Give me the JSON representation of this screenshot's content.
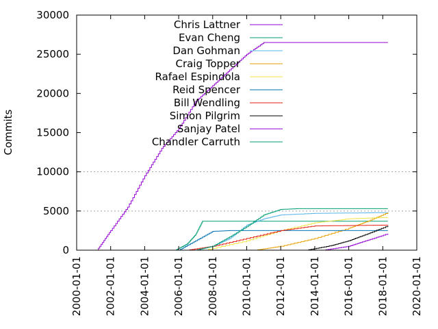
{
  "chart_data": {
    "type": "line",
    "title": "",
    "xlabel": "",
    "ylabel": "Commits",
    "xlim": [
      2000.0,
      2020.0
    ],
    "ylim": [
      0,
      30000
    ],
    "x_ticks": [
      "2000-01-01",
      "2002-01-01",
      "2004-01-01",
      "2006-01-01",
      "2008-01-01",
      "2010-01-01",
      "2012-01-01",
      "2014-01-01",
      "2016-01-01",
      "2018-01-01",
      "2020-01-01"
    ],
    "x_tick_values": [
      2000,
      2002,
      2004,
      2006,
      2008,
      2010,
      2012,
      2014,
      2016,
      2018,
      2020
    ],
    "y_ticks": [
      0,
      5000,
      10000,
      15000,
      20000,
      25000,
      30000
    ],
    "y_tick_labels": [
      "0",
      "5000",
      "10000",
      "15000",
      "20000",
      "25000",
      "30000"
    ],
    "grid_y": [
      5000,
      10000
    ],
    "legend_position": "top-left",
    "series": [
      {
        "name": "Chris Lattner",
        "color": "#9400d3",
        "points": [
          [
            2001.2,
            0
          ],
          [
            2002,
            2500
          ],
          [
            2003,
            5500
          ],
          [
            2004,
            9500
          ],
          [
            2005,
            13000
          ],
          [
            2006,
            15500
          ],
          [
            2007,
            19000
          ],
          [
            2008,
            21000
          ],
          [
            2009,
            23000
          ],
          [
            2010,
            25000
          ],
          [
            2011,
            26500
          ],
          [
            2012,
            26500
          ],
          [
            2018.3,
            26500
          ]
        ]
      },
      {
        "name": "Evan Cheng",
        "color": "#009e73",
        "points": [
          [
            2005.8,
            0
          ],
          [
            2006.5,
            800
          ],
          [
            2007,
            2000
          ],
          [
            2007.4,
            3700
          ],
          [
            2008,
            3700
          ],
          [
            2012,
            3700
          ],
          [
            2018.3,
            3700
          ]
        ]
      },
      {
        "name": "Dan Gohman",
        "color": "#56b4e9",
        "points": [
          [
            2007.0,
            0
          ],
          [
            2008,
            500
          ],
          [
            2009,
            1500
          ],
          [
            2010,
            3200
          ],
          [
            2011,
            4000
          ],
          [
            2012,
            4500
          ],
          [
            2014,
            4700
          ],
          [
            2018.3,
            4800
          ]
        ]
      },
      {
        "name": "Craig Topper",
        "color": "#e69f00",
        "points": [
          [
            2010.5,
            0
          ],
          [
            2012,
            500
          ],
          [
            2014,
            1500
          ],
          [
            2016,
            2800
          ],
          [
            2017,
            3600
          ],
          [
            2018.3,
            4800
          ]
        ]
      },
      {
        "name": "Rafael Espindola",
        "color": "#f0e442",
        "points": [
          [
            2007.5,
            0
          ],
          [
            2010,
            1200
          ],
          [
            2012,
            2500
          ],
          [
            2014,
            3500
          ],
          [
            2016,
            4000
          ],
          [
            2018.3,
            4200
          ]
        ]
      },
      {
        "name": "Reid Spencer",
        "color": "#0072b2",
        "points": [
          [
            2006.0,
            0
          ],
          [
            2007,
            1200
          ],
          [
            2008,
            2400
          ],
          [
            2009,
            2500
          ],
          [
            2018.3,
            2500
          ]
        ]
      },
      {
        "name": "Bill Wendling",
        "color": "#e51e10",
        "points": [
          [
            2006.5,
            0
          ],
          [
            2008,
            500
          ],
          [
            2010,
            1500
          ],
          [
            2012,
            2500
          ],
          [
            2014,
            3100
          ],
          [
            2018.3,
            3200
          ]
        ]
      },
      {
        "name": "Simon Pilgrim",
        "color": "#000000",
        "points": [
          [
            2013.5,
            0
          ],
          [
            2015,
            600
          ],
          [
            2016,
            1200
          ],
          [
            2017,
            2000
          ],
          [
            2018.3,
            3100
          ]
        ]
      },
      {
        "name": "Sanjay Patel",
        "color": "#9400d3",
        "points": [
          [
            2014.5,
            0
          ],
          [
            2016,
            500
          ],
          [
            2017,
            1200
          ],
          [
            2018.3,
            2100
          ]
        ]
      },
      {
        "name": "Chandler Carruth",
        "color": "#009e73",
        "points": [
          [
            2007.0,
            0
          ],
          [
            2008,
            500
          ],
          [
            2009,
            1700
          ],
          [
            2010,
            3000
          ],
          [
            2011,
            4500
          ],
          [
            2012,
            5200
          ],
          [
            2013,
            5300
          ],
          [
            2018.3,
            5300
          ]
        ]
      }
    ]
  }
}
